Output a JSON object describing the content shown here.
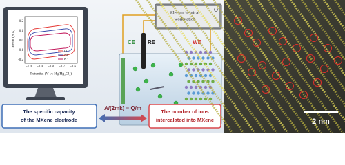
{
  "monitor_plot": {
    "y_label": "Current (mA)",
    "x_label": "Potential (V vs Hg/Hg₂Cl₂)",
    "y_ticks": [
      "0.2",
      "0.1",
      "0.0",
      "-0.1",
      "-0.2"
    ],
    "x_ticks": [
      "-1.0",
      "-0.9",
      "-0.8",
      "-0.7",
      "-0.6"
    ],
    "legend": [
      "Li⁺",
      "Na⁺",
      "K⁺"
    ]
  },
  "workstation": {
    "label_lines": [
      "Electrochemical",
      "workstation"
    ]
  },
  "electrodes": {
    "counter": "CE",
    "reference": "RE",
    "working": "WE"
  },
  "summary": {
    "left_lines": [
      "The specific capacity",
      "of the MXene electrode"
    ],
    "formula": "A/(2mk) = Q/m",
    "right_lines": [
      "The number of ions",
      "intercalated into MXene"
    ]
  },
  "micrograph": {
    "scale_bar": "2 nm"
  }
}
